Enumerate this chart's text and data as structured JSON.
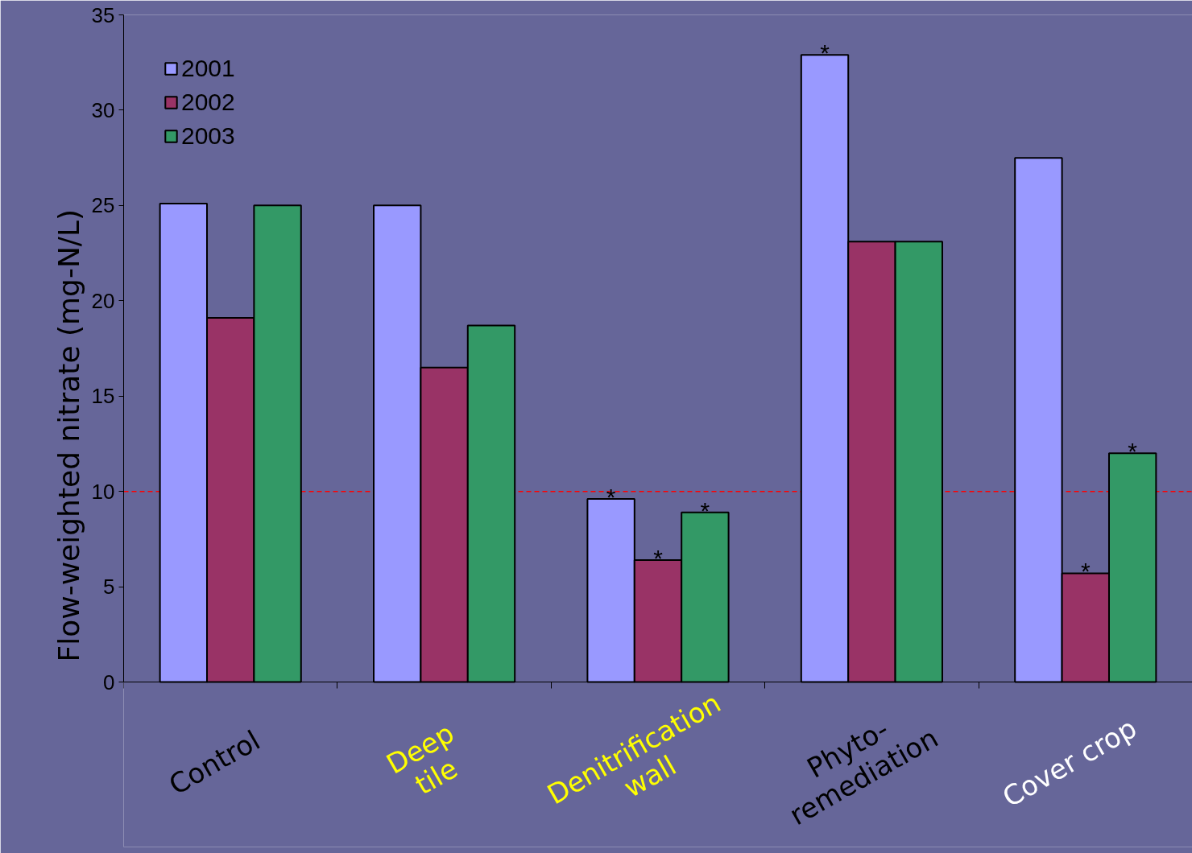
{
  "chart_data": {
    "type": "bar",
    "categories": [
      "Control",
      "Deep\ntile",
      "Denitrification\nwall",
      "Phyto-\nremediation",
      "Cover crop"
    ],
    "series": [
      {
        "name": "2001",
        "color": "#9999ff",
        "values": [
          25.1,
          25.0,
          9.6,
          32.9,
          27.5
        ]
      },
      {
        "name": "2002",
        "color": "#993366",
        "values": [
          19.1,
          16.5,
          6.4,
          23.1,
          5.7
        ]
      },
      {
        "name": "2003",
        "color": "#339966",
        "values": [
          25.0,
          18.7,
          8.9,
          23.1,
          12.0
        ]
      }
    ],
    "ylabel": "Flow-weighted nitrate  (mg-N/L)",
    "ylim": [
      0,
      35
    ],
    "yticks": [
      0,
      5,
      10,
      15,
      20,
      25,
      30,
      35
    ],
    "ref_lines": [
      {
        "axis": "y",
        "value": 10,
        "color": "#ff0000",
        "line_style": "dashed"
      }
    ],
    "annotations": [
      "*",
      "*",
      "*",
      "*",
      "*",
      "*"
    ],
    "grid": false,
    "legend": "top left"
  }
}
